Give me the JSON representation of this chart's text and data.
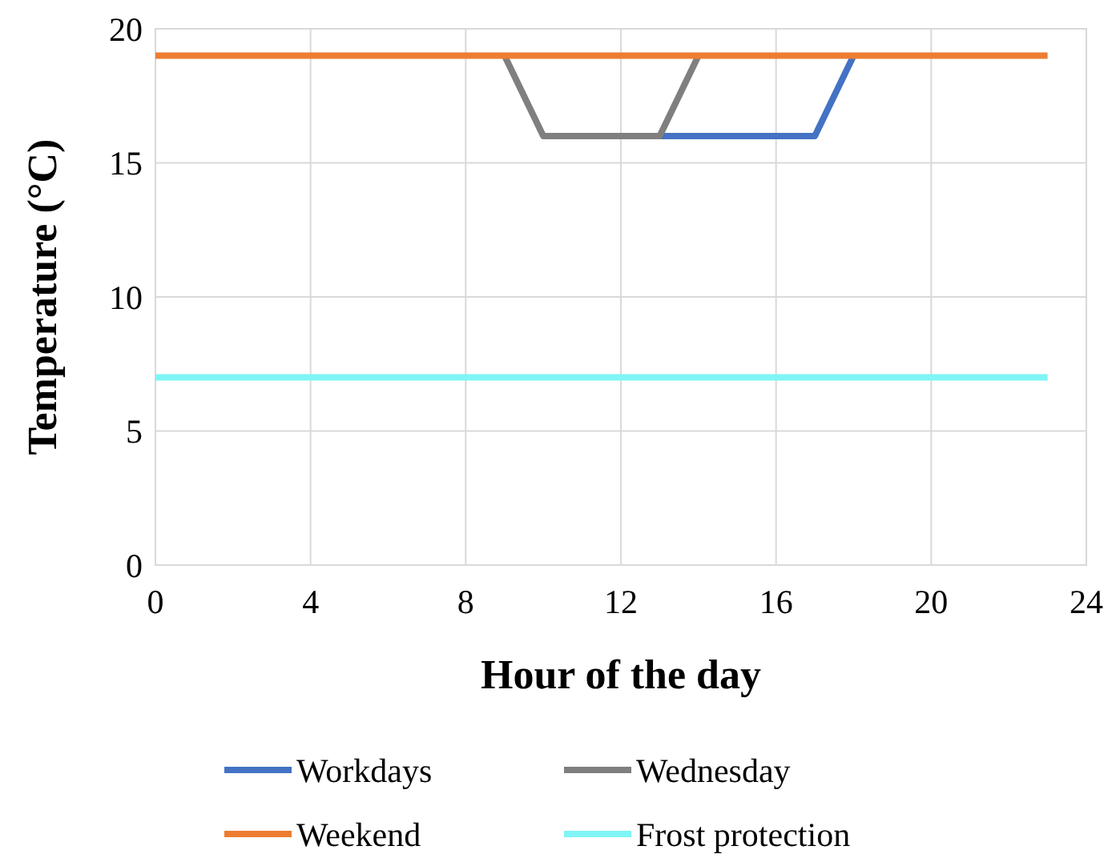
{
  "chart_data": {
    "type": "line",
    "xlabel": "Hour of the day",
    "ylabel": "Temperature (°C)",
    "xlim": [
      0,
      24
    ],
    "xticks": [
      0,
      4,
      8,
      12,
      16,
      20,
      24
    ],
    "ylim": [
      0,
      20
    ],
    "yticks": [
      0,
      5,
      10,
      15,
      20
    ],
    "grid": true,
    "legend": "bottom",
    "marker": "none",
    "line_style": "solid",
    "series": [
      {
        "name": "Workdays",
        "color": "#4472c4",
        "x": [
          13,
          17,
          18
        ],
        "values": [
          16,
          16,
          19
        ]
      },
      {
        "name": "Wednesday",
        "color": "#7f7f7f",
        "x": [
          9,
          10,
          13,
          14
        ],
        "values": [
          19,
          16,
          16,
          19
        ]
      },
      {
        "name": "Weekend",
        "color": "#ed7d31",
        "x": [
          0,
          23
        ],
        "values": [
          19,
          19
        ]
      },
      {
        "name": "Frost protection",
        "color": "#7ff5f5",
        "x": [
          0,
          23
        ],
        "values": [
          7,
          7
        ]
      }
    ]
  }
}
